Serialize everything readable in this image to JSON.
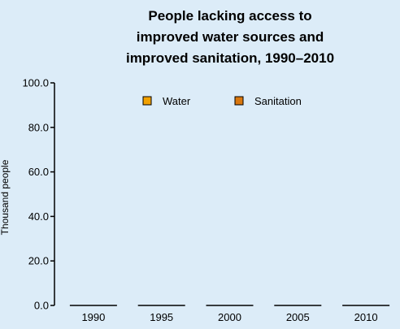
{
  "chart_data": {
    "type": "bar",
    "title": [
      "People lacking access to",
      "improved water sources and",
      "improved sanitation, 1990–2010"
    ],
    "xlabel": "",
    "ylabel": "Thousand people",
    "categories": [
      "1990",
      "1995",
      "2000",
      "2005",
      "2010"
    ],
    "series": [
      {
        "name": "Water",
        "values": [
          0,
          0,
          0,
          0,
          0
        ],
        "color": "#f2a100"
      },
      {
        "name": "Sanitation",
        "values": [
          0,
          0,
          0,
          0,
          0
        ],
        "color": "#d9770e"
      }
    ],
    "ylim": [
      0,
      100
    ],
    "yticks": [
      "0.0",
      "20.0",
      "40.0",
      "60.0",
      "80.0",
      "100.0"
    ],
    "ytick_values": [
      0,
      20,
      40,
      60,
      80,
      100
    ],
    "grid": false,
    "legend_placement": "top-center",
    "colors": {
      "background": "#dcecf8",
      "axis": "#000000",
      "text": "#000000"
    }
  }
}
